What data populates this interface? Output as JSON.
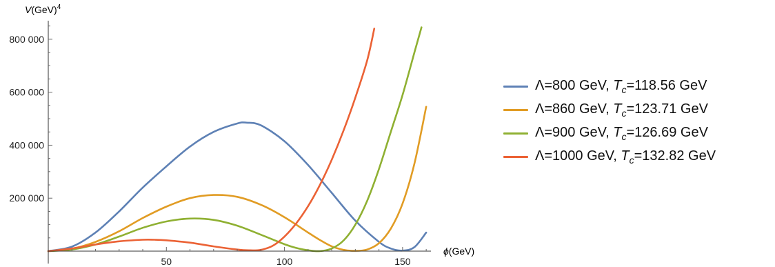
{
  "chart_data": {
    "type": "line",
    "ylabel_prefix": "V",
    "ylabel_unit": "(GeV)",
    "ylabel_exp": "4",
    "xlabel_symbol": "ϕ",
    "xlabel_unit": "(GeV)",
    "xlim": [
      0,
      162
    ],
    "ylim": [
      0,
      870000
    ],
    "x_ticks": [
      50,
      100,
      150
    ],
    "x_tick_labels": [
      "50",
      "100",
      "150"
    ],
    "y_ticks": [
      200000,
      400000,
      600000,
      800000
    ],
    "y_tick_labels": [
      "200 000",
      "400 000",
      "600 000",
      "800 000"
    ],
    "series": [
      {
        "name": "Λ=800 GeV, T_c=118.56 GeV",
        "lambda_text": "Λ=800 GeV, ",
        "tc_text": "=118.56 GeV",
        "color": "#5e81b5",
        "x": [
          0,
          10,
          20,
          30,
          40,
          50,
          60,
          70,
          80,
          84,
          90,
          100,
          110,
          120,
          130,
          140,
          145,
          150,
          155,
          160
        ],
        "y": [
          0,
          17000,
          70000,
          150000,
          240000,
          320000,
          395000,
          450000,
          482000,
          485000,
          475000,
          415000,
          325000,
          220000,
          115000,
          35000,
          10000,
          2000,
          15000,
          70000
        ]
      },
      {
        "name": "Λ=860 GeV, T_c=123.71 GeV",
        "lambda_text": "Λ=860 GeV, ",
        "tc_text": "=123.71 GeV",
        "color": "#e19c24",
        "x": [
          0,
          10,
          20,
          30,
          40,
          50,
          60,
          70,
          80,
          90,
          100,
          110,
          115,
          120,
          125,
          130,
          135,
          140,
          145,
          150,
          155,
          160
        ],
        "y": [
          0,
          9000,
          35000,
          75000,
          125000,
          168000,
          200000,
          212000,
          205000,
          175000,
          128000,
          70000,
          42000,
          18000,
          5000,
          1000,
          6000,
          30000,
          85000,
          180000,
          330000,
          545000
        ]
      },
      {
        "name": "Λ=900 GeV, T_c=126.69 GeV",
        "lambda_text": "Λ=900 GeV, ",
        "tc_text": "=126.69 GeV",
        "color": "#8fb032",
        "x": [
          0,
          10,
          20,
          30,
          40,
          50,
          60,
          70,
          80,
          90,
          100,
          105,
          110,
          115,
          120,
          125,
          130,
          135,
          140,
          145,
          150,
          155,
          158
        ],
        "y": [
          0,
          6000,
          25000,
          55000,
          88000,
          112000,
          123000,
          118000,
          96000,
          62000,
          26000,
          12000,
          3000,
          0,
          10000,
          40000,
          100000,
          190000,
          310000,
          450000,
          590000,
          750000,
          845000
        ]
      },
      {
        "name": "Λ=1000 GeV, T_c=132.82 GeV",
        "lambda_text": "Λ=1000 GeV, ",
        "tc_text": "=132.82 GeV",
        "color": "#eb6235",
        "x": [
          0,
          10,
          20,
          30,
          40,
          45,
          50,
          60,
          70,
          80,
          85,
          90,
          95,
          100,
          105,
          110,
          115,
          120,
          125,
          130,
          135,
          138
        ],
        "y": [
          0,
          10000,
          25000,
          37000,
          43000,
          43000,
          41000,
          32000,
          18000,
          6000,
          3000,
          5000,
          20000,
          55000,
          105000,
          170000,
          250000,
          345000,
          455000,
          580000,
          720000,
          840000
        ]
      }
    ],
    "grid": false,
    "legend": "right"
  }
}
